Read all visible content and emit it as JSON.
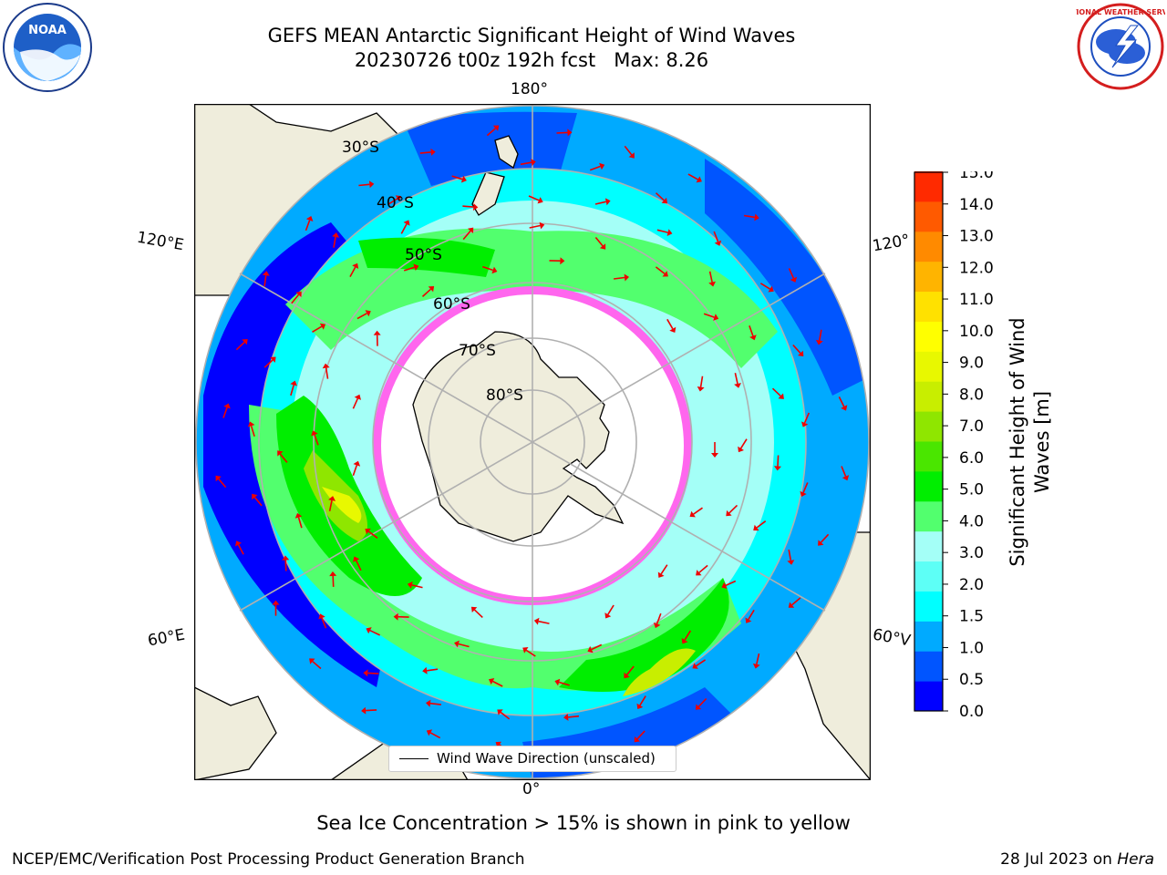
{
  "title": {
    "line1": "GEFS MEAN Antarctic Significant Height of Wind Waves",
    "line2": "20230726 t00z 192h fcst   Max: 8.26"
  },
  "logos": {
    "left": "NOAA",
    "right": "NATIONAL WEATHER SERVICE"
  },
  "map": {
    "projection": "south-polar-stereographic",
    "longitude_labels": {
      "top": "180°",
      "bottom": "0°",
      "upper_left": "120°E",
      "lower_left": "60°E",
      "upper_right": "120°",
      "lower_right": "60°V"
    },
    "latitude_labels": [
      "30°S",
      "40°S",
      "50°S",
      "60°S",
      "70°S",
      "80°S"
    ],
    "legend": "Wind Wave Direction (unscaled)",
    "max_value": 8.26
  },
  "colorbar": {
    "label": "Significant Height of Wind Waves [m]",
    "label_line1": "Significant Height of Wind",
    "label_line2": "Waves [m]",
    "ticks": [
      "15.0",
      "14.0",
      "13.0",
      "12.0",
      "11.0",
      "10.0",
      "9.0",
      "8.0",
      "7.0",
      "6.0",
      "5.0",
      "4.0",
      "3.0",
      "2.0",
      "1.5",
      "1.0",
      "0.5",
      "0.0"
    ],
    "colors": [
      "#0000ff",
      "#0055ff",
      "#00aaff",
      "#00ffff",
      "#5dfff6",
      "#a4fff7",
      "#52ff6e",
      "#00ee00",
      "#4ae600",
      "#8fe600",
      "#c8ee00",
      "#e8f800",
      "#ffff00",
      "#ffe100",
      "#ffb400",
      "#ff8a00",
      "#ff5a00",
      "#ff2a00",
      "#ff0000"
    ]
  },
  "note": "Sea Ice Concentration > 15% is shown in pink to yellow",
  "footer": {
    "left": "NCEP/EMC/Verification Post Processing Product Generation Branch",
    "right_prefix": "28 Jul 2023 on ",
    "right_italic": "Hera"
  }
}
